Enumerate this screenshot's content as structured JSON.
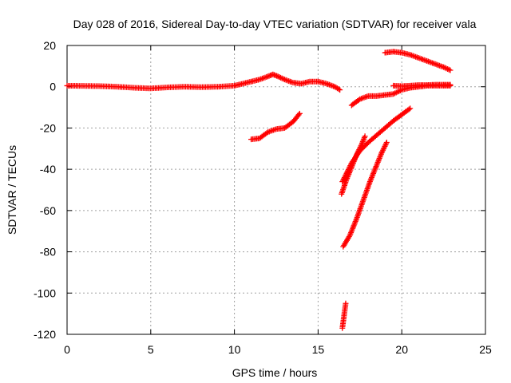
{
  "chart_data": {
    "type": "scatter",
    "title": "Day 028 of 2016, Sidereal Day-to-day VTEC variation (SDTVAR) for receiver vala",
    "xlabel": "GPS time / hours",
    "ylabel": "SDTVAR / TECUs",
    "xlim": [
      0,
      25
    ],
    "ylim": [
      -120,
      20
    ],
    "x_ticks": [
      0,
      5,
      10,
      15,
      20,
      25
    ],
    "y_ticks": [
      -120,
      -100,
      -80,
      -60,
      -40,
      -20,
      0,
      20
    ],
    "x_tick_labels": [
      "0",
      "5",
      "10",
      "15",
      "20",
      "25"
    ],
    "y_tick_labels": [
      "-120",
      "-100",
      "-80",
      "-60",
      "-40",
      "-20",
      "0",
      "20"
    ],
    "grid": true,
    "marker": "plus",
    "marker_color": "#ff0000",
    "series": [
      {
        "points": [
          [
            0.0,
            0.5
          ],
          [
            1.0,
            0.4
          ],
          [
            2.0,
            0.3
          ],
          [
            3.0,
            0.0
          ],
          [
            4.0,
            -0.5
          ],
          [
            5.0,
            -0.8
          ],
          [
            6.0,
            -0.3
          ],
          [
            7.0,
            0.0
          ],
          [
            8.0,
            -0.2
          ],
          [
            9.0,
            0.0
          ],
          [
            10.0,
            0.5
          ],
          [
            10.5,
            1.5
          ],
          [
            11.0,
            2.5
          ],
          [
            11.5,
            3.5
          ],
          [
            12.0,
            5.0
          ],
          [
            12.3,
            6.0
          ],
          [
            12.6,
            5.0
          ],
          [
            13.0,
            3.5
          ],
          [
            13.5,
            2.0
          ],
          [
            14.0,
            1.5
          ],
          [
            14.5,
            2.5
          ],
          [
            15.0,
            2.5
          ],
          [
            15.5,
            1.5
          ],
          [
            16.0,
            0.0
          ],
          [
            16.3,
            -1.5
          ]
        ]
      },
      {
        "points": [
          [
            11.0,
            -25.5
          ],
          [
            11.5,
            -25.0
          ],
          [
            12.0,
            -22.0
          ],
          [
            12.5,
            -20.5
          ],
          [
            13.0,
            -20.0
          ],
          [
            13.5,
            -17.0
          ],
          [
            13.9,
            -13.0
          ]
        ]
      },
      {
        "points": [
          [
            17.0,
            -9.0
          ],
          [
            17.5,
            -6.0
          ],
          [
            18.0,
            -4.5
          ],
          [
            18.5,
            -4.5
          ],
          [
            19.0,
            -4.0
          ],
          [
            19.5,
            -3.5
          ],
          [
            20.0,
            -1.5
          ],
          [
            20.5,
            -0.5
          ],
          [
            21.0,
            0.0
          ],
          [
            21.5,
            0.5
          ],
          [
            22.0,
            0.5
          ],
          [
            22.5,
            0.5
          ],
          [
            22.9,
            0.5
          ]
        ]
      },
      {
        "points": [
          [
            19.5,
            0.5
          ],
          [
            20.0,
            0.3
          ],
          [
            20.5,
            0.5
          ],
          [
            21.0,
            0.8
          ],
          [
            21.5,
            0.8
          ],
          [
            22.0,
            1.0
          ],
          [
            22.5,
            1.0
          ],
          [
            22.9,
            1.0
          ]
        ]
      },
      {
        "points": [
          [
            19.0,
            16.5
          ],
          [
            19.5,
            17.0
          ],
          [
            20.0,
            16.5
          ],
          [
            20.5,
            15.5
          ],
          [
            21.0,
            14.0
          ],
          [
            21.5,
            12.5
          ],
          [
            22.0,
            11.0
          ],
          [
            22.5,
            9.5
          ],
          [
            22.9,
            8.0
          ]
        ]
      },
      {
        "points": [
          [
            16.45,
            -46.0
          ],
          [
            16.7,
            -42.0
          ],
          [
            17.0,
            -37.0
          ],
          [
            17.5,
            -31.0
          ],
          [
            18.0,
            -27.0
          ],
          [
            18.5,
            -23.5
          ],
          [
            19.0,
            -20.0
          ],
          [
            19.5,
            -16.5
          ],
          [
            20.0,
            -13.5
          ],
          [
            20.5,
            -10.5
          ]
        ]
      },
      {
        "points": [
          [
            16.4,
            -52.0
          ],
          [
            16.7,
            -45.0
          ],
          [
            17.0,
            -39.0
          ],
          [
            17.3,
            -33.0
          ],
          [
            17.6,
            -28.0
          ],
          [
            17.8,
            -24.0
          ]
        ]
      },
      {
        "points": [
          [
            16.5,
            -77.5
          ],
          [
            16.9,
            -72.0
          ],
          [
            17.3,
            -64.0
          ],
          [
            17.7,
            -55.0
          ],
          [
            18.1,
            -46.0
          ],
          [
            18.5,
            -38.0
          ],
          [
            18.8,
            -32.0
          ],
          [
            19.1,
            -27.0
          ]
        ]
      },
      {
        "points": [
          [
            16.45,
            -117.0
          ],
          [
            16.5,
            -114.0
          ],
          [
            16.55,
            -111.0
          ],
          [
            16.6,
            -108.0
          ],
          [
            16.65,
            -105.0
          ]
        ]
      }
    ]
  }
}
